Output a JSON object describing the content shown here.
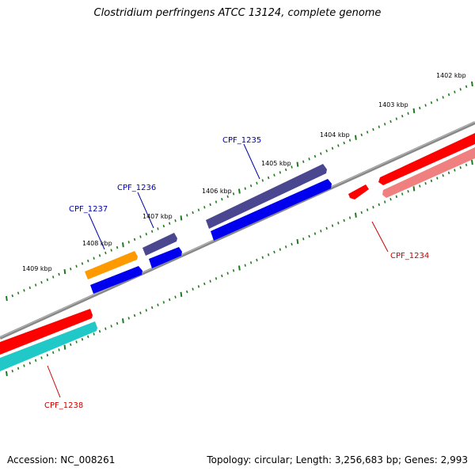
{
  "title": "Clostridium perfringens ATCC 13124, complete genome",
  "footer": {
    "accession_label": "Accession:",
    "accession": "NC_008261",
    "topology_label": "Topology:",
    "topology": "circular",
    "length_label": "Length:",
    "length": "3,256,683 bp",
    "genes_label": "Genes:",
    "genes": "2,993"
  },
  "colors": {
    "backbone": "#888888",
    "tick": "#1f7a1f",
    "forward_cds": "#ff0000",
    "forward_cds_light": "#f08080",
    "reverse_cds": "#0000ee",
    "gene_purple": "#4b4690",
    "gene_orange": "#ff9900",
    "gene_cyan": "#20c8c8",
    "label_blue": "#0000aa",
    "label_red": "#cc0000"
  },
  "scale": {
    "unit": "kbp",
    "ticks": [
      1402,
      1403,
      1404,
      1405,
      1406,
      1407,
      1408,
      1409
    ]
  },
  "gene_labels": [
    {
      "id": "CPF_1234",
      "text": "CPF_1234",
      "strand": "forward"
    },
    {
      "id": "CPF_1235",
      "text": "CPF_1235",
      "strand": "reverse"
    },
    {
      "id": "CPF_1236",
      "text": "CPF_1236",
      "strand": "reverse"
    },
    {
      "id": "CPF_1237",
      "text": "CPF_1237",
      "strand": "reverse"
    },
    {
      "id": "CPF_1238",
      "text": "CPF_1238",
      "strand": "forward"
    }
  ]
}
